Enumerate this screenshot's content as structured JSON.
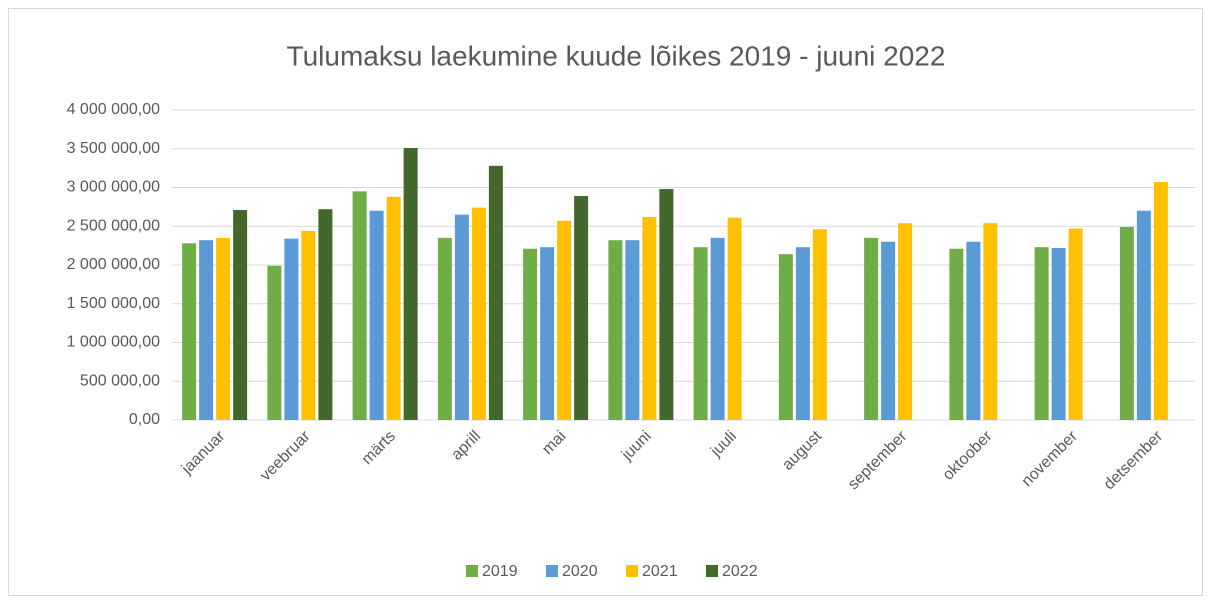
{
  "chart_data": {
    "type": "bar",
    "title": "Tulumaksu laekumine kuude lõikes 2019 - juuni 2022",
    "categories": [
      "jaanuar",
      "veebruar",
      "märts",
      "aprill",
      "mai",
      "juuni",
      "juuli",
      "august",
      "september",
      "oktoober",
      "november",
      "detsember"
    ],
    "series": [
      {
        "name": "2019",
        "color": "#70ad47",
        "values": [
          2280000,
          1990000,
          2950000,
          2350000,
          2210000,
          2320000,
          2230000,
          2140000,
          2350000,
          2210000,
          2230000,
          2490000
        ]
      },
      {
        "name": "2020",
        "color": "#5b9bd5",
        "values": [
          2320000,
          2340000,
          2700000,
          2650000,
          2230000,
          2320000,
          2350000,
          2230000,
          2300000,
          2300000,
          2220000,
          2700000
        ]
      },
      {
        "name": "2021",
        "color": "#ffc000",
        "values": [
          2350000,
          2440000,
          2880000,
          2740000,
          2570000,
          2620000,
          2610000,
          2460000,
          2540000,
          2540000,
          2470000,
          3070000
        ]
      },
      {
        "name": "2022",
        "color": "#43682b",
        "values": [
          2710000,
          2720000,
          3510000,
          3280000,
          2890000,
          2980000,
          null,
          null,
          null,
          null,
          null,
          null
        ]
      }
    ],
    "ylim": [
      0,
      4000000
    ],
    "yticks": [
      {
        "value": 0,
        "label": "0,00"
      },
      {
        "value": 500000,
        "label": "500 000,00"
      },
      {
        "value": 1000000,
        "label": "1 000 000,00"
      },
      {
        "value": 1500000,
        "label": "1 500 000,00"
      },
      {
        "value": 2000000,
        "label": "2 000 000,00"
      },
      {
        "value": 2500000,
        "label": "2 500 000,00"
      },
      {
        "value": 3000000,
        "label": "3 000 000,00"
      },
      {
        "value": 3500000,
        "label": "3 500 000,00"
      },
      {
        "value": 4000000,
        "label": "4 000 000,00"
      }
    ],
    "grid": true,
    "legend": "bottom"
  }
}
